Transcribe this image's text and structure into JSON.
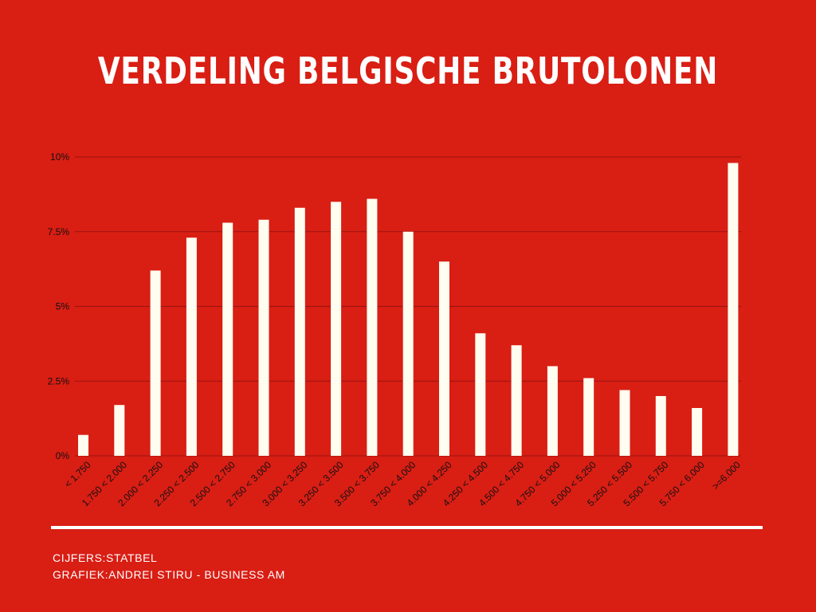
{
  "title": "VERDELING BELGISCHE BRUTOLONEN",
  "footer": {
    "source": "CIJFERS:STATBEL",
    "credit": "GRAFIEK:ANDREI STIRU - BUSINESS AM"
  },
  "colors": {
    "background": "#d91e14",
    "bar": "#fffdf0",
    "gridline": "#9a1410",
    "text": "#ffffff",
    "axis_text": "#111111",
    "divider": "#ffffff"
  },
  "chart_data": {
    "type": "bar",
    "title": "VERDELING BELGISCHE BRUTOLONEN",
    "xlabel": "",
    "ylabel": "",
    "ylim": [
      0,
      10
    ],
    "yticks": [
      0,
      2.5,
      5,
      7.5,
      10
    ],
    "ytick_labels": [
      "0%",
      "2.5%",
      "5%",
      "7.5%",
      "10%"
    ],
    "grid": true,
    "legend": "none",
    "categories": [
      "< 1.750",
      "1.750 < 2.000",
      "2.000 < 2.250",
      "2.250 < 2.500",
      "2.500 < 2.750",
      "2.750 < 3.000",
      "3.000 < 3.250",
      "3.250 < 3.500",
      "3.500 < 3.750",
      "3.750 < 4.000",
      "4.000 < 4.250",
      "4.250 < 4.500",
      "4.500 < 4.750",
      "4.750 < 5.000",
      "5.000 < 5.250",
      "5.250 < 5.500",
      "5.500 < 5.750",
      "5.750 < 6.000",
      ">=6.000"
    ],
    "values": [
      0.7,
      1.7,
      6.2,
      7.3,
      7.8,
      7.9,
      8.3,
      8.5,
      8.6,
      7.5,
      6.5,
      4.1,
      3.7,
      3.0,
      2.6,
      2.2,
      2.0,
      1.6,
      9.8
    ]
  }
}
